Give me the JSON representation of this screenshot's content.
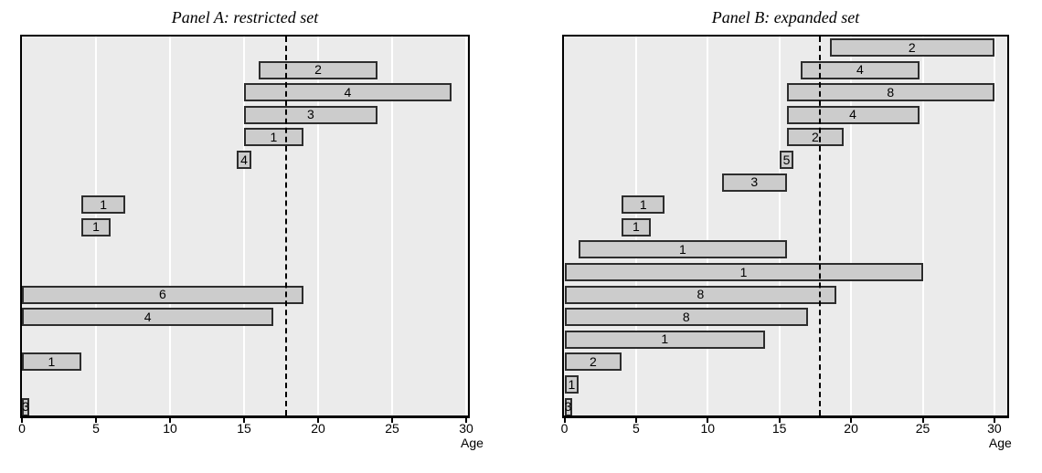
{
  "chart_data": [
    {
      "type": "bar",
      "variant": "horizontal-interval",
      "title": "Panel A: restricted set",
      "xlabel": "Age",
      "xlim": [
        0,
        30
      ],
      "x_ticks": [
        0,
        5,
        10,
        15,
        20,
        25,
        30
      ],
      "grid": "vertical-white-lines",
      "reference_line_x": 18,
      "reference_line_style": "dashed",
      "rows_total": 17,
      "bars": [
        {
          "row": 2,
          "label": "2",
          "start": 16,
          "end": 24
        },
        {
          "row": 3,
          "label": "4",
          "start": 15,
          "end": 29
        },
        {
          "row": 4,
          "label": "3",
          "start": 15,
          "end": 24
        },
        {
          "row": 5,
          "label": "1",
          "start": 15,
          "end": 19
        },
        {
          "row": 6,
          "label": "4",
          "start": 14.5,
          "end": 15.5
        },
        {
          "row": 8,
          "label": "1",
          "start": 4,
          "end": 7
        },
        {
          "row": 9,
          "label": "1",
          "start": 4,
          "end": 6
        },
        {
          "row": 12,
          "label": "6",
          "start": 0,
          "end": 19
        },
        {
          "row": 13,
          "label": "4",
          "start": 0,
          "end": 17
        },
        {
          "row": 15,
          "label": "1",
          "start": 0,
          "end": 4
        },
        {
          "row": 17,
          "label": "3",
          "start": 0,
          "end": 0.5
        }
      ]
    },
    {
      "type": "bar",
      "variant": "horizontal-interval",
      "title": "Panel B: expanded set",
      "xlabel": "Age",
      "xlim": [
        0,
        30
      ],
      "x_ticks": [
        0,
        5,
        10,
        15,
        20,
        25,
        30
      ],
      "grid": "vertical-white-lines",
      "reference_line_x": 18,
      "reference_line_style": "dashed",
      "rows_total": 17,
      "bars": [
        {
          "row": 1,
          "label": "2",
          "start": 18.5,
          "end": 30
        },
        {
          "row": 2,
          "label": "4",
          "start": 16.5,
          "end": 24.75
        },
        {
          "row": 3,
          "label": "8",
          "start": 15.5,
          "end": 30
        },
        {
          "row": 4,
          "label": "4",
          "start": 15.5,
          "end": 24.75
        },
        {
          "row": 5,
          "label": "2",
          "start": 15.5,
          "end": 19.5
        },
        {
          "row": 6,
          "label": "5",
          "start": 15,
          "end": 16
        },
        {
          "row": 7,
          "label": "3",
          "start": 11,
          "end": 15.5
        },
        {
          "row": 8,
          "label": "1",
          "start": 4,
          "end": 7
        },
        {
          "row": 9,
          "label": "1",
          "start": 4,
          "end": 6
        },
        {
          "row": 10,
          "label": "1",
          "start": 1,
          "end": 15.5
        },
        {
          "row": 11,
          "label": "1",
          "start": 0,
          "end": 25
        },
        {
          "row": 12,
          "label": "8",
          "start": 0,
          "end": 19
        },
        {
          "row": 13,
          "label": "8",
          "start": 0,
          "end": 17
        },
        {
          "row": 14,
          "label": "1",
          "start": 0,
          "end": 14
        },
        {
          "row": 15,
          "label": "2",
          "start": 0,
          "end": 4
        },
        {
          "row": 16,
          "label": "1",
          "start": 0,
          "end": 1
        },
        {
          "row": 17,
          "label": "3",
          "start": 0,
          "end": 0.5
        }
      ]
    }
  ],
  "colors": {
    "plot_background": "#ebebeb",
    "bar_fill": "#cccccc",
    "bar_border": "#2d2d2d",
    "gridline": "#ffffff",
    "frame": "#000000",
    "reference_line": "#000000",
    "text": "#000000"
  }
}
